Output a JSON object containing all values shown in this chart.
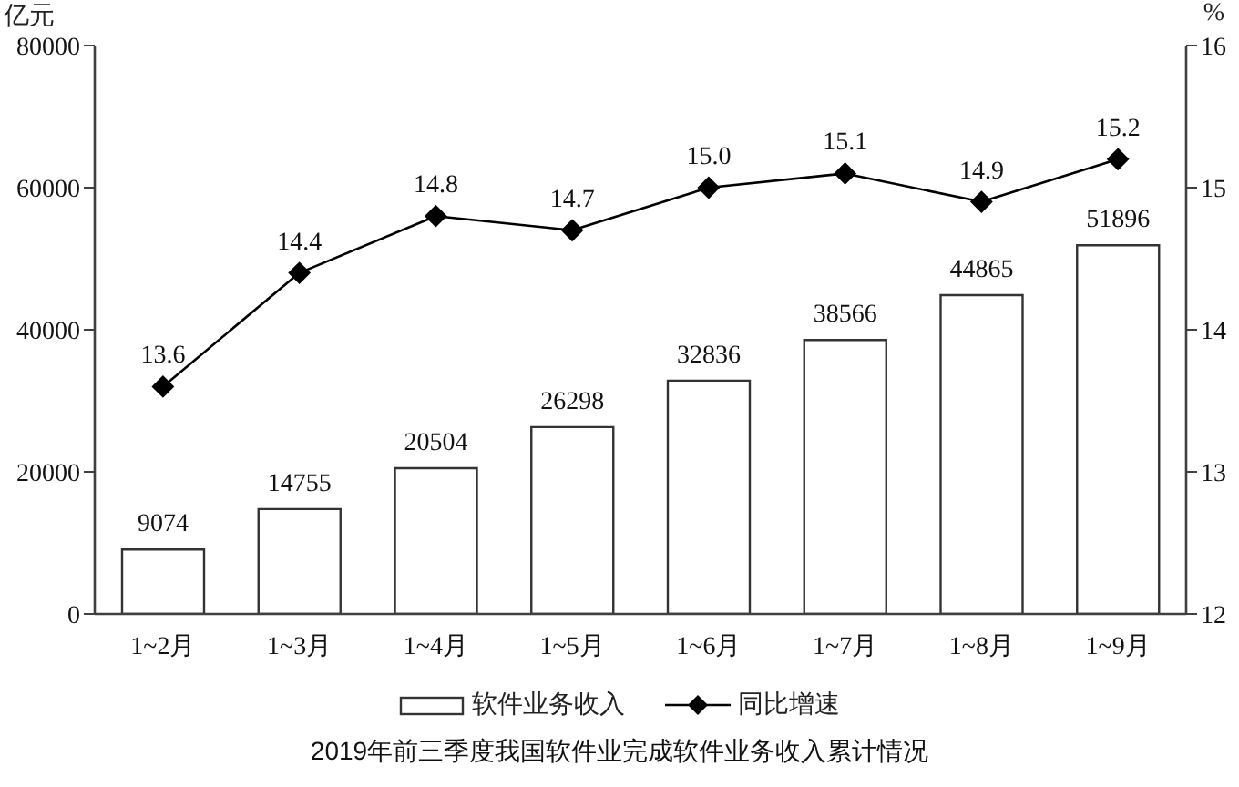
{
  "chart_data": {
    "type": "bar",
    "title": "2019年前三季度我国软件业完成软件业务收入累计情况",
    "ylabel": "亿元",
    "y2label": "%",
    "categories": [
      "1~2月",
      "1~3月",
      "1~4月",
      "1~5月",
      "1~6月",
      "1~7月",
      "1~8月",
      "1~9月"
    ],
    "series": [
      {
        "name": "软件业务收入",
        "color": "#ffffff",
        "values": [
          9074,
          14755,
          20504,
          26298,
          32836,
          38566,
          44865,
          51896
        ],
        "value_labels": [
          "9074",
          "14755",
          "20504",
          "26298",
          "32836",
          "38566",
          "44865",
          "51896"
        ]
      },
      {
        "name": "同比增速",
        "type": "line",
        "axis": "y2",
        "color": "#000000",
        "marker": "diamond",
        "line_style": "solid",
        "values": [
          13.6,
          14.4,
          14.8,
          14.7,
          15.0,
          15.1,
          14.9,
          15.2
        ],
        "value_labels": [
          "13.6",
          "14.4",
          "14.8",
          "14.7",
          "15.0",
          "15.1",
          "14.9",
          "15.2"
        ]
      }
    ],
    "ylim": [
      0,
      80000
    ],
    "yticks": [
      0,
      20000,
      40000,
      60000,
      80000
    ],
    "y2lim": [
      12,
      16
    ],
    "y2ticks": [
      12,
      13,
      14,
      15,
      16
    ],
    "legend": "bottom"
  }
}
